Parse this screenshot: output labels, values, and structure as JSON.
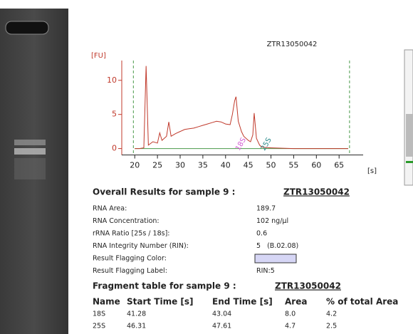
{
  "chart_data": {
    "type": "line",
    "title": "ZTR13050042",
    "y_label": "[FU]",
    "x_label": "[s]",
    "x": [
      20,
      21,
      22,
      22.5,
      23,
      24,
      25,
      25.5,
      26,
      27,
      27.5,
      28,
      29,
      30,
      31,
      32,
      33,
      34,
      35,
      36,
      37,
      38,
      39,
      40,
      41,
      41.5,
      42,
      42.3,
      42.8,
      43.5,
      44,
      45,
      45.5,
      46,
      46.3,
      46.8,
      47.5,
      48,
      50,
      55,
      60,
      65,
      67
    ],
    "series": [
      {
        "color": "#c0392b",
        "values": [
          0,
          0,
          0.1,
          12.1,
          0.5,
          1.0,
          0.8,
          2.3,
          1.2,
          1.8,
          3.9,
          1.8,
          2.2,
          2.5,
          2.8,
          2.9,
          3.0,
          3.2,
          3.4,
          3.6,
          3.8,
          4.0,
          3.9,
          3.6,
          3.5,
          5.0,
          7.0,
          7.6,
          4.0,
          2.5,
          1.8,
          1.2,
          1.0,
          2.0,
          5.2,
          1.5,
          0.5,
          0.2,
          0.1,
          0,
          0,
          0,
          0
        ]
      }
    ],
    "xlim": [
      16.2,
      70.3
    ],
    "ylim": [
      -1.4,
      12.9
    ],
    "xticks": [
      20,
      25,
      30,
      35,
      40,
      45,
      50,
      55,
      60,
      65
    ],
    "yticks": [
      0,
      5,
      10
    ],
    "dashed_lines_x": [
      19.7,
      67.3
    ],
    "annotations": [
      {
        "text": "18S",
        "x": 42.6,
        "color": "#d35fd3"
      },
      {
        "text": "25S",
        "x": 48.2,
        "color": "#2a8a8a"
      }
    ]
  },
  "overall": {
    "heading": "Overall Results for sample 9 :",
    "sample": "ZTR13050042",
    "rows": [
      [
        "RNA Area:",
        "189.7"
      ],
      [
        "RNA Concentration:",
        "102 ng/µl"
      ],
      [
        "rRNA Ratio [25s / 18s]:",
        "0.6"
      ],
      [
        "RNA Integrity Number (RIN):",
        "5   (B.02.08)"
      ],
      [
        "Result Flagging Color:",
        null
      ],
      [
        "Result Flagging Label:",
        "RIN:5"
      ]
    ]
  },
  "fragments": {
    "heading": "Fragment table for sample 9 :",
    "sample": "ZTR13050042",
    "columns": [
      "Name",
      "Start Time [s]",
      "End Time [s]",
      "Area",
      "% of total Area"
    ],
    "rows": [
      [
        "18S",
        "41.28",
        "43.04",
        "8.0",
        "4.2"
      ],
      [
        "25S",
        "46.31",
        "47.61",
        "4.7",
        "2.5"
      ]
    ]
  }
}
